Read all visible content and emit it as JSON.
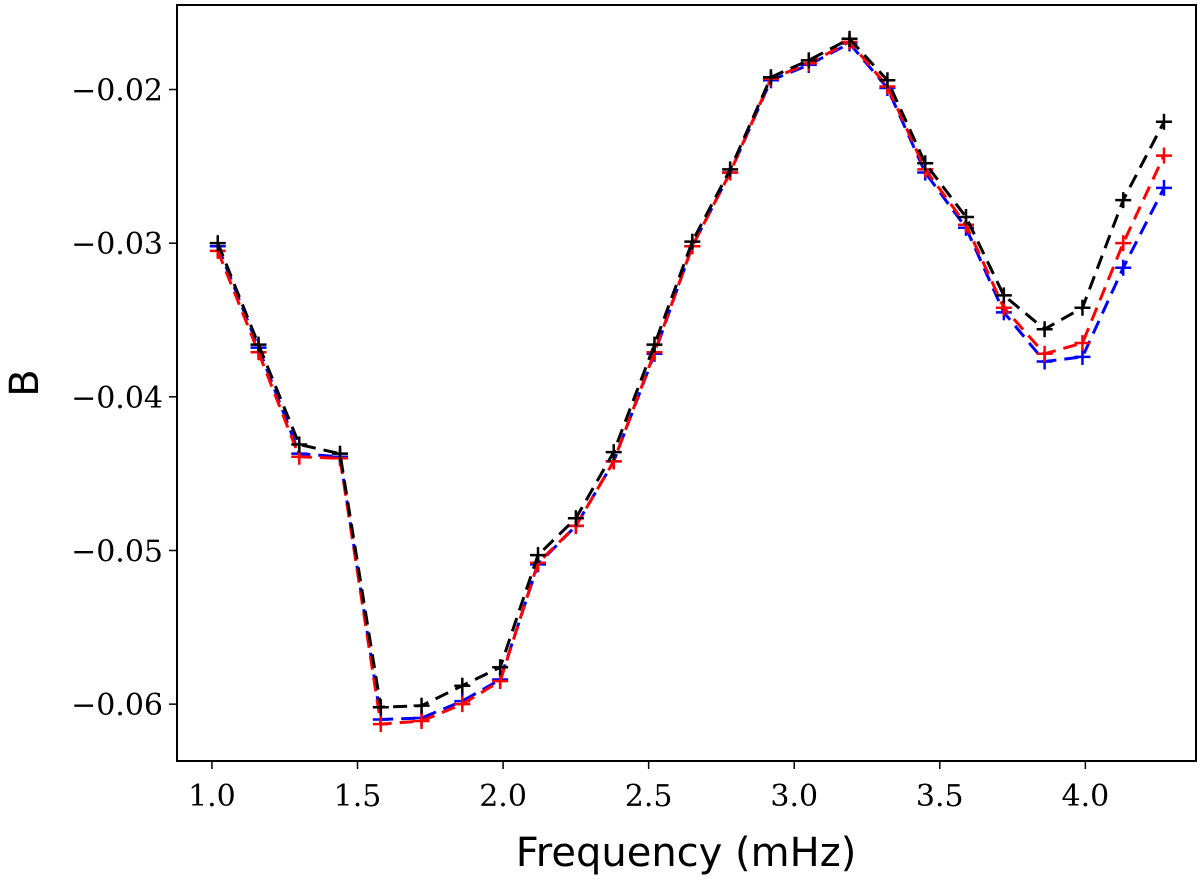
{
  "chart_data": {
    "type": "line",
    "title": "",
    "xlabel": "Frequency (mHz)",
    "ylabel": "B",
    "xlim": [
      0.88,
      4.38
    ],
    "ylim": [
      -0.0637,
      -0.0145
    ],
    "xticks": [
      1.0,
      1.5,
      2.0,
      2.5,
      3.0,
      3.5,
      4.0
    ],
    "xtick_labels": [
      "1.0",
      "1.5",
      "2.0",
      "2.5",
      "3.0",
      "3.5",
      "4.0"
    ],
    "yticks": [
      -0.06,
      -0.05,
      -0.04,
      -0.03,
      -0.02
    ],
    "ytick_labels": [
      "−0.06",
      "−0.05",
      "−0.04",
      "−0.03",
      "−0.02"
    ],
    "grid": false,
    "x": [
      1.02,
      1.16,
      1.3,
      1.44,
      1.58,
      1.72,
      1.86,
      1.99,
      2.12,
      2.25,
      2.38,
      2.52,
      2.65,
      2.78,
      2.92,
      3.05,
      3.19,
      3.32,
      3.45,
      3.59,
      3.72,
      3.86,
      3.99,
      4.13,
      4.27
    ],
    "series": [
      {
        "color": "#0000ff",
        "marker": "+",
        "values": [
          -0.0302,
          -0.0368,
          -0.0437,
          -0.0439,
          -0.061,
          -0.0609,
          -0.0598,
          -0.0584,
          -0.0509,
          -0.0484,
          -0.0442,
          -0.0372,
          -0.0302,
          -0.0254,
          -0.0194,
          -0.0184,
          -0.017,
          -0.0199,
          -0.0254,
          -0.029,
          -0.0345,
          -0.0377,
          -0.0374,
          -0.0316,
          -0.0264
        ]
      },
      {
        "color": "#ff0000",
        "marker": "+",
        "values": [
          -0.0305,
          -0.0371,
          -0.0439,
          -0.044,
          -0.0613,
          -0.0611,
          -0.06,
          -0.0585,
          -0.0508,
          -0.0484,
          -0.0442,
          -0.0371,
          -0.0302,
          -0.0254,
          -0.0193,
          -0.0183,
          -0.0169,
          -0.0198,
          -0.0252,
          -0.0288,
          -0.0342,
          -0.0372,
          -0.0365,
          -0.03,
          -0.0243
        ]
      },
      {
        "color": "#000000",
        "marker": "+",
        "values": [
          -0.03,
          -0.0366,
          -0.0431,
          -0.0437,
          -0.0602,
          -0.0601,
          -0.0588,
          -0.0576,
          -0.0503,
          -0.0479,
          -0.0436,
          -0.0366,
          -0.0299,
          -0.0252,
          -0.0192,
          -0.0181,
          -0.0167,
          -0.0194,
          -0.0248,
          -0.0283,
          -0.0334,
          -0.0356,
          -0.0342,
          -0.0272,
          -0.0221
        ]
      }
    ]
  }
}
